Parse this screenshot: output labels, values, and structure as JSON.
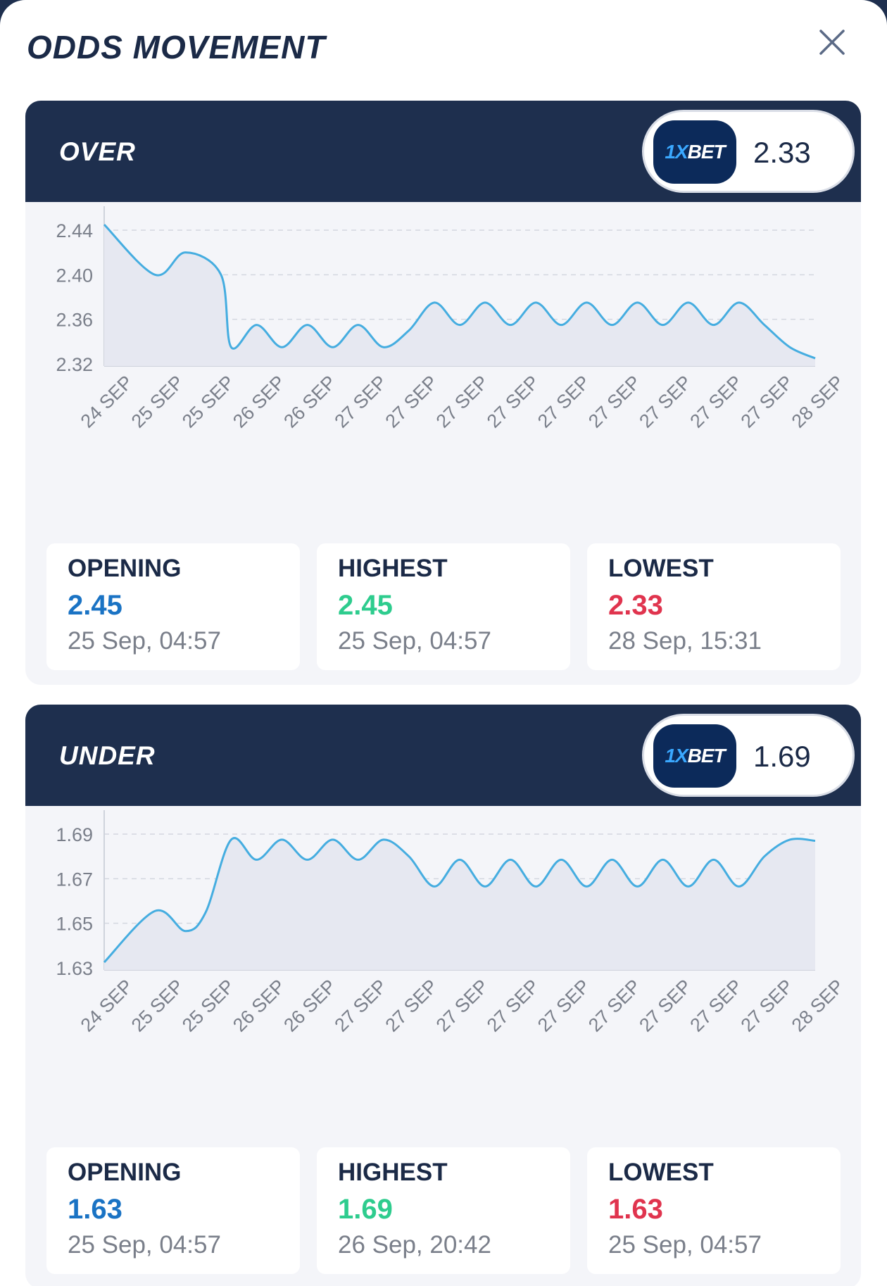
{
  "title": "ODDS MOVEMENT",
  "colors": {
    "header": "#1e2f4e",
    "line": "#45ade0",
    "opening": "#1a73c4",
    "highest": "#2ecc8e",
    "lowest": "#e0344e"
  },
  "icons": {
    "close": "close-icon",
    "book": "1xbet-logo"
  },
  "over": {
    "label": "OVER",
    "book_logo": "1XBET",
    "odds": "2.33",
    "stats": {
      "opening_label": "OPENING",
      "opening_value": "2.45",
      "opening_date": "25 Sep, 04:57",
      "highest_label": "HIGHEST",
      "highest_value": "2.45",
      "highest_date": "25 Sep, 04:57",
      "lowest_label": "LOWEST",
      "lowest_value": "2.33",
      "lowest_date": "28 Sep, 15:31"
    }
  },
  "under": {
    "label": "UNDER",
    "book_logo": "1XBET",
    "odds": "1.69",
    "stats": {
      "opening_label": "OPENING",
      "opening_value": "1.63",
      "opening_date": "25 Sep, 04:57",
      "highest_label": "HIGHEST",
      "highest_value": "1.69",
      "highest_date": "26 Sep, 20:42",
      "lowest_label": "LOWEST",
      "lowest_value": "1.63",
      "lowest_date": "25 Sep, 04:57"
    }
  },
  "chart_data": [
    {
      "type": "area",
      "title": "OVER",
      "categories": [
        "24 SEP",
        "25 SEP",
        "25 SEP",
        "26 SEP",
        "26 SEP",
        "27 SEP",
        "27 SEP",
        "27 SEP",
        "27 SEP",
        "27 SEP",
        "27 SEP",
        "27 SEP",
        "27 SEP",
        "27 SEP",
        "28 SEP"
      ],
      "yticks": [
        "2.44",
        "2.40",
        "2.36",
        "2.32"
      ],
      "ylim": [
        2.32,
        2.44
      ],
      "grid": true,
      "series": [
        {
          "x": [
            0,
            1,
            1.6,
            2.3,
            2.5,
            3,
            3.5,
            4,
            4.5,
            5,
            5.5,
            6,
            6.5,
            7,
            7.5,
            8,
            8.5,
            9,
            9.5,
            10,
            10.5,
            11,
            11.5,
            12,
            12.5,
            13,
            13.5,
            14
          ],
          "values": [
            2.445,
            2.4,
            2.42,
            2.4,
            2.335,
            2.355,
            2.335,
            2.355,
            2.335,
            2.355,
            2.335,
            2.35,
            2.375,
            2.355,
            2.375,
            2.355,
            2.375,
            2.355,
            2.375,
            2.355,
            2.375,
            2.355,
            2.375,
            2.355,
            2.375,
            2.355,
            2.335,
            2.325
          ]
        }
      ]
    },
    {
      "type": "area",
      "title": "UNDER",
      "categories": [
        "24 SEP",
        "25 SEP",
        "25 SEP",
        "26 SEP",
        "26 SEP",
        "27 SEP",
        "27 SEP",
        "27 SEP",
        "27 SEP",
        "27 SEP",
        "27 SEP",
        "27 SEP",
        "27 SEP",
        "27 SEP",
        "28 SEP"
      ],
      "yticks": [
        "1.69",
        "1.67",
        "1.65",
        "1.63"
      ],
      "ylim": [
        1.63,
        1.69
      ],
      "grid": true,
      "series": [
        {
          "x": [
            0,
            1,
            1.6,
            2,
            2.5,
            3,
            3.5,
            4,
            4.5,
            5,
            5.5,
            6,
            6.5,
            7,
            7.5,
            8,
            8.5,
            9,
            9.5,
            10,
            10.5,
            11,
            11.5,
            12,
            12.5,
            13,
            13.5,
            14
          ],
          "values": [
            1.6325,
            1.6555,
            1.6465,
            1.655,
            1.6875,
            1.6785,
            1.6875,
            1.6785,
            1.6875,
            1.6785,
            1.6875,
            1.68,
            1.6665,
            1.6785,
            1.6665,
            1.6785,
            1.6665,
            1.6785,
            1.6665,
            1.6785,
            1.6665,
            1.6785,
            1.6665,
            1.6785,
            1.6665,
            1.68,
            1.6875,
            1.687
          ]
        }
      ]
    }
  ]
}
